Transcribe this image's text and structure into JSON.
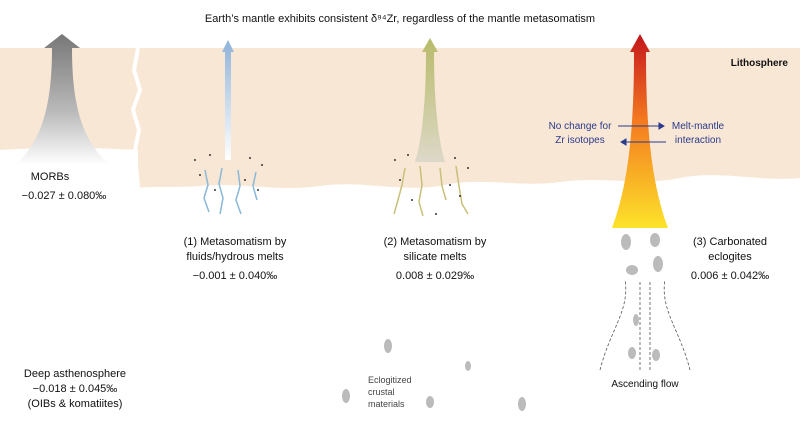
{
  "title": "Earth’s mantle exhibits consistent δ⁹⁴Zr, regardless of the mantle metasomatism",
  "lithosphere": "Lithosphere",
  "morbs": {
    "name": "MORBs",
    "value": "−0.027 ± 0.080‰"
  },
  "fluids": {
    "lines": [
      "(1) Metasomatism by",
      "fluids/hydrous melts"
    ],
    "value": "−0.001 ± 0.040‰"
  },
  "silicate": {
    "lines": [
      "(2) Metasomatism by",
      "silicate melts"
    ],
    "value": "0.008 ± 0.029‰"
  },
  "carbonated": {
    "lines": [
      "(3) Carbonated",
      "eclogites"
    ],
    "value": "0.006 ± 0.042‰"
  },
  "no_change": [
    "No change for",
    "Zr isotopes"
  ],
  "interaction": [
    "Melt-mantle",
    "interaction"
  ],
  "ascending_flow": "Ascending flow",
  "deep": [
    "Deep asthenosphere",
    "−0.018 ± 0.045‰",
    "(OIBs & komatiites)"
  ],
  "eclogitized": [
    "Eclogitized",
    "crustal",
    "materials"
  ]
}
